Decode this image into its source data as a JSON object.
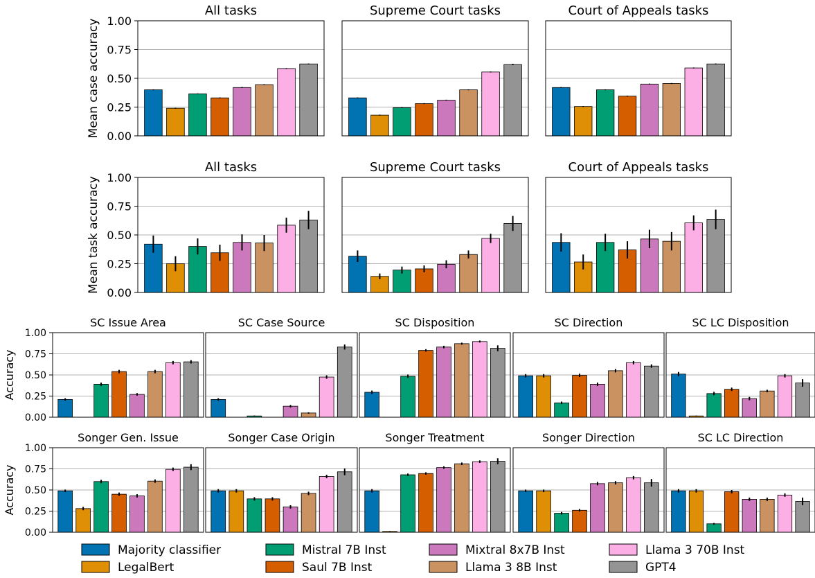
{
  "models": [
    "Majority classifier",
    "LegalBert",
    "Mistral 7B Inst",
    "Saul 7B Inst",
    "Mixtral 8x7B Inst",
    "Llama 3 8B Inst",
    "Llama 3 70B Inst",
    "GPT4"
  ],
  "colors": [
    "#0173b2",
    "#de8f05",
    "#029e73",
    "#d55e00",
    "#cc78bc",
    "#ca9161",
    "#fbafe4",
    "#949494"
  ],
  "chart_data": [
    {
      "type": "bar",
      "title": "All tasks",
      "ylabel": "Mean case accuracy",
      "ylim": [
        0,
        1
      ],
      "yticks": [
        "0.00",
        "0.25",
        "0.50",
        "0.75",
        "1.00"
      ],
      "grid": "horizontal",
      "values": [
        0.4,
        0.24,
        0.365,
        0.33,
        0.42,
        0.445,
        0.585,
        0.625
      ],
      "errors": [
        0,
        0,
        0,
        0,
        0,
        0,
        0,
        0.004
      ]
    },
    {
      "type": "bar",
      "title": "Supreme Court tasks",
      "ylabel": "",
      "ylim": [
        0,
        1
      ],
      "grid": "horizontal",
      "values": [
        0.33,
        0.18,
        0.245,
        0.28,
        0.31,
        0.4,
        0.555,
        0.62
      ],
      "errors": [
        0.003,
        0.002,
        0.003,
        0.003,
        0.003,
        0.004,
        0.004,
        0.006
      ]
    },
    {
      "type": "bar",
      "title": "Court of Appeals tasks",
      "ylabel": "",
      "ylim": [
        0,
        1
      ],
      "grid": "horizontal",
      "values": [
        0.42,
        0.255,
        0.4,
        0.345,
        0.45,
        0.455,
        0.59,
        0.625
      ],
      "errors": [
        0,
        0,
        0,
        0,
        0,
        0,
        0,
        0.004
      ]
    },
    {
      "type": "bar",
      "title": "All tasks",
      "ylabel": "Mean task accuracy",
      "ylim": [
        0,
        1
      ],
      "yticks": [
        "0.00",
        "0.25",
        "0.50",
        "0.75",
        "1.00"
      ],
      "grid": "horizontal",
      "values": [
        0.42,
        0.25,
        0.4,
        0.345,
        0.435,
        0.43,
        0.585,
        0.63
      ],
      "errors": [
        0.075,
        0.065,
        0.07,
        0.07,
        0.07,
        0.07,
        0.065,
        0.08
      ]
    },
    {
      "type": "bar",
      "title": "Supreme Court tasks",
      "ylabel": "",
      "ylim": [
        0,
        1
      ],
      "grid": "horizontal",
      "values": [
        0.315,
        0.14,
        0.195,
        0.205,
        0.245,
        0.33,
        0.47,
        0.6
      ],
      "errors": [
        0.05,
        0.025,
        0.03,
        0.03,
        0.035,
        0.035,
        0.04,
        0.065
      ]
    },
    {
      "type": "bar",
      "title": "Court of Appeals tasks",
      "ylabel": "",
      "ylim": [
        0,
        1
      ],
      "grid": "horizontal",
      "values": [
        0.435,
        0.265,
        0.435,
        0.37,
        0.465,
        0.445,
        0.605,
        0.635
      ],
      "errors": [
        0.08,
        0.065,
        0.075,
        0.075,
        0.08,
        0.08,
        0.065,
        0.085
      ]
    },
    {
      "type": "bar",
      "title": "SC Issue Area",
      "ylabel": "Accuracy",
      "ylim": [
        0,
        1
      ],
      "yticks": [
        "0.00",
        "0.25",
        "0.50",
        "0.75",
        "1.00"
      ],
      "grid": "horizontal",
      "values": [
        0.21,
        0.0,
        0.39,
        0.54,
        0.27,
        0.54,
        0.645,
        0.655
      ],
      "errors": [
        0.015,
        0,
        0.02,
        0.02,
        0.015,
        0.02,
        0.02,
        0.02
      ]
    },
    {
      "type": "bar",
      "title": "SC Case Source",
      "ylabel": "",
      "ylim": [
        0,
        1
      ],
      "grid": "horizontal",
      "values": [
        0.21,
        0.0,
        0.015,
        0.0,
        0.13,
        0.05,
        0.475,
        0.83
      ],
      "errors": [
        0.015,
        0,
        0.005,
        0,
        0.015,
        0.008,
        0.02,
        0.03
      ]
    },
    {
      "type": "bar",
      "title": "SC Disposition",
      "ylabel": "",
      "ylim": [
        0,
        1
      ],
      "grid": "horizontal",
      "values": [
        0.295,
        0.0,
        0.485,
        0.79,
        0.83,
        0.87,
        0.895,
        0.815
      ],
      "errors": [
        0.02,
        0,
        0.02,
        0.015,
        0.015,
        0.012,
        0.012,
        0.035
      ]
    },
    {
      "type": "bar",
      "title": "SC Direction",
      "ylabel": "",
      "ylim": [
        0,
        1
      ],
      "grid": "horizontal",
      "values": [
        0.49,
        0.49,
        0.17,
        0.495,
        0.39,
        0.55,
        0.645,
        0.605
      ],
      "errors": [
        0.02,
        0.02,
        0.015,
        0.02,
        0.02,
        0.02,
        0.02,
        0.02
      ]
    },
    {
      "type": "bar",
      "title": "SC LC Disposition",
      "ylabel": "",
      "ylim": [
        0,
        1
      ],
      "grid": "horizontal",
      "values": [
        0.51,
        0.015,
        0.28,
        0.33,
        0.22,
        0.31,
        0.49,
        0.405
      ],
      "errors": [
        0.025,
        0.003,
        0.02,
        0.02,
        0.02,
        0.015,
        0.02,
        0.045
      ]
    },
    {
      "type": "bar",
      "title": "Songer Gen. Issue",
      "ylabel": "Accuracy",
      "ylim": [
        0,
        1
      ],
      "yticks": [
        "0.00",
        "0.25",
        "0.50",
        "0.75",
        "1.00"
      ],
      "grid": "horizontal",
      "values": [
        0.49,
        0.28,
        0.6,
        0.45,
        0.43,
        0.605,
        0.745,
        0.77
      ],
      "errors": [
        0.015,
        0.02,
        0.02,
        0.02,
        0.02,
        0.02,
        0.02,
        0.035
      ]
    },
    {
      "type": "bar",
      "title": "Songer Case Origin",
      "ylabel": "",
      "ylim": [
        0,
        1
      ],
      "grid": "horizontal",
      "values": [
        0.49,
        0.49,
        0.395,
        0.395,
        0.3,
        0.46,
        0.66,
        0.715
      ],
      "errors": [
        0.02,
        0.02,
        0.02,
        0.02,
        0.02,
        0.02,
        0.02,
        0.04
      ]
    },
    {
      "type": "bar",
      "title": "Songer Treatment",
      "ylabel": "",
      "ylim": [
        0,
        1
      ],
      "grid": "horizontal",
      "values": [
        0.49,
        0.01,
        0.68,
        0.695,
        0.765,
        0.81,
        0.835,
        0.84
      ],
      "errors": [
        0.02,
        0.003,
        0.015,
        0.015,
        0.015,
        0.015,
        0.015,
        0.035
      ]
    },
    {
      "type": "bar",
      "title": "Songer Direction",
      "ylabel": "",
      "ylim": [
        0,
        1
      ],
      "grid": "horizontal",
      "values": [
        0.49,
        0.49,
        0.225,
        0.26,
        0.575,
        0.585,
        0.645,
        0.585
      ],
      "errors": [
        0.015,
        0.015,
        0.015,
        0.015,
        0.02,
        0.02,
        0.02,
        0.045
      ]
    },
    {
      "type": "bar",
      "title": "SC LC Direction",
      "ylabel": "",
      "ylim": [
        0,
        1
      ],
      "grid": "horizontal",
      "values": [
        0.49,
        0.49,
        0.1,
        0.48,
        0.39,
        0.39,
        0.44,
        0.365
      ],
      "errors": [
        0.02,
        0.02,
        0.01,
        0.02,
        0.02,
        0.02,
        0.02,
        0.045
      ]
    }
  ]
}
